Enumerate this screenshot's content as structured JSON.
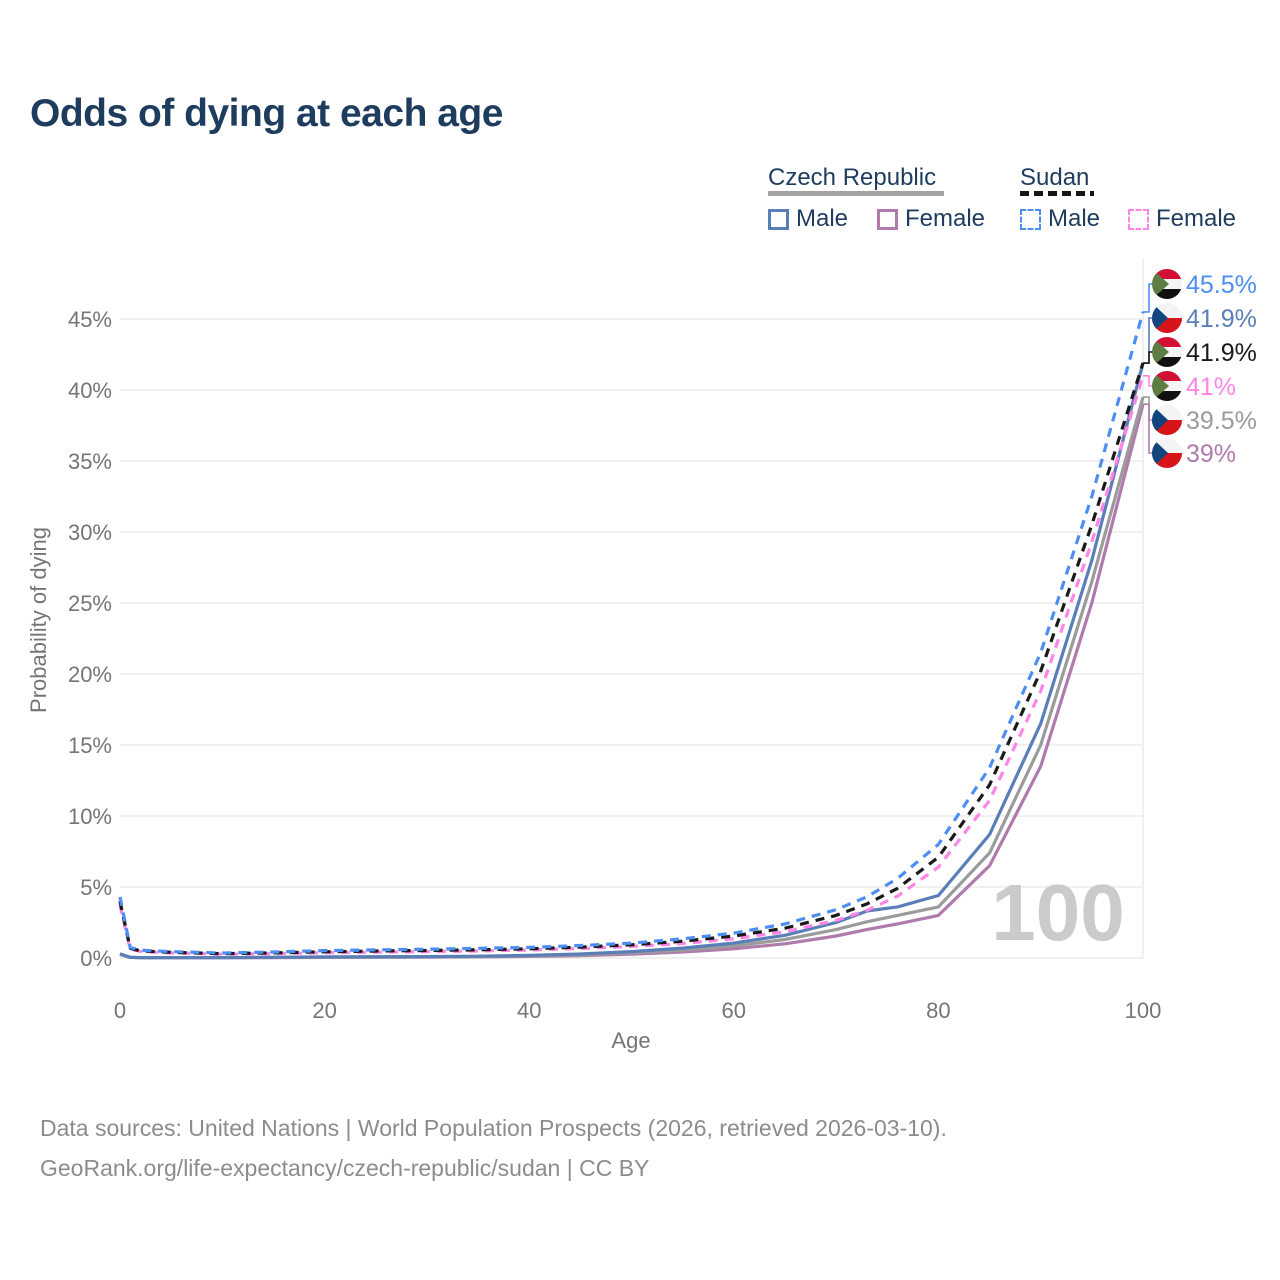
{
  "title": "Odds of dying at each age",
  "legend": {
    "groups": [
      {
        "name": "Czech Republic",
        "line_style": "solid",
        "underline_color": "#a3a3a3",
        "items": [
          {
            "label": "Male",
            "color": "#5a7eb8"
          },
          {
            "label": "Female",
            "color": "#b07aac"
          }
        ]
      },
      {
        "name": "Sudan",
        "line_style": "dashed",
        "underline_color": "#151515",
        "items": [
          {
            "label": "Male",
            "color": "#4d8ef5"
          },
          {
            "label": "Female",
            "color": "#ff85e6"
          }
        ]
      }
    ]
  },
  "watermark": "100",
  "footer": {
    "line1": "Data sources: United Nations | World Population Prospects (2026, retrieved 2026-03-10).",
    "line2": "GeoRank.org/life-expectancy/czech-republic/sudan | CC BY"
  },
  "chart_data": {
    "type": "line",
    "title": "Odds of dying at each age",
    "xlabel": "Age",
    "ylabel": "Probability of dying",
    "xlim": [
      0,
      100
    ],
    "ylim_pct": [
      0,
      47
    ],
    "grid": true,
    "legend_position": "top-right",
    "x_ticks": [
      0,
      20,
      40,
      60,
      80,
      100
    ],
    "y_tick_values_pct": [
      0,
      5,
      10,
      15,
      20,
      25,
      30,
      35,
      40,
      45
    ],
    "y_tick_suffix": "%",
    "ages": [
      0,
      1,
      2,
      5,
      10,
      15,
      20,
      25,
      30,
      35,
      40,
      45,
      50,
      55,
      60,
      65,
      70,
      73,
      76,
      80,
      85,
      90,
      95,
      100
    ],
    "series": [
      {
        "id": "czech-female",
        "name": "Czech Republic Female",
        "country": "Czech Republic",
        "sex": "Female",
        "color": "#b07aac",
        "dashed": false,
        "flag": "czech",
        "end_label": "39%",
        "values_pct": [
          0.25,
          0.04,
          0.02,
          0.02,
          0.02,
          0.03,
          0.04,
          0.05,
          0.06,
          0.08,
          0.11,
          0.17,
          0.27,
          0.42,
          0.65,
          1.0,
          1.55,
          2.0,
          2.4,
          3.0,
          6.5,
          13.5,
          25.0,
          39.0
        ]
      },
      {
        "id": "czech-all",
        "name": "Czech Republic",
        "country": "Czech Republic",
        "sex": "Both",
        "color": "#9b9b9b",
        "dashed": false,
        "flag": "czech",
        "end_label": "39.5%",
        "values_pct": [
          0.27,
          0.04,
          0.03,
          0.02,
          0.02,
          0.04,
          0.06,
          0.07,
          0.08,
          0.1,
          0.14,
          0.22,
          0.36,
          0.55,
          0.85,
          1.3,
          2.0,
          2.55,
          3.0,
          3.6,
          7.4,
          15.0,
          26.5,
          39.5
        ]
      },
      {
        "id": "czech-male",
        "name": "Czech Republic Male",
        "country": "Czech Republic",
        "sex": "Male",
        "color": "#5a7eb8",
        "dashed": false,
        "flag": "czech",
        "end_label": "41.9%",
        "values_pct": [
          0.3,
          0.05,
          0.03,
          0.02,
          0.02,
          0.05,
          0.08,
          0.09,
          0.1,
          0.13,
          0.18,
          0.28,
          0.45,
          0.7,
          1.05,
          1.6,
          2.5,
          3.3,
          3.6,
          4.4,
          8.7,
          16.5,
          28.0,
          41.9
        ]
      },
      {
        "id": "sudan-female",
        "name": "Sudan Female",
        "country": "Sudan",
        "sex": "Female",
        "color": "#ff85e6",
        "dashed": true,
        "flag": "sudan",
        "end_label": "41%",
        "values_pct": [
          3.7,
          0.62,
          0.46,
          0.36,
          0.27,
          0.3,
          0.37,
          0.41,
          0.45,
          0.49,
          0.56,
          0.67,
          0.82,
          1.02,
          1.35,
          1.85,
          2.65,
          3.35,
          4.35,
          6.4,
          11.1,
          18.8,
          29.3,
          41.0
        ]
      },
      {
        "id": "sudan-all",
        "name": "Sudan",
        "country": "Sudan",
        "sex": "Both",
        "color": "#1a1a1a",
        "dashed": true,
        "flag": "sudan",
        "end_label": "41.9%",
        "values_pct": [
          4.0,
          0.68,
          0.5,
          0.4,
          0.3,
          0.36,
          0.44,
          0.49,
          0.53,
          0.58,
          0.65,
          0.77,
          0.93,
          1.18,
          1.55,
          2.1,
          3.0,
          3.8,
          4.9,
          7.1,
          12.2,
          20.2,
          30.5,
          41.9
        ]
      },
      {
        "id": "sudan-male",
        "name": "Sudan Male",
        "country": "Sudan",
        "sex": "Male",
        "color": "#4d8ef5",
        "dashed": true,
        "flag": "sudan",
        "end_label": "45.5%",
        "values_pct": [
          4.3,
          0.75,
          0.55,
          0.45,
          0.35,
          0.42,
          0.52,
          0.57,
          0.62,
          0.68,
          0.75,
          0.88,
          1.05,
          1.35,
          1.75,
          2.4,
          3.4,
          4.3,
          5.6,
          8.0,
          13.4,
          21.5,
          32.5,
          45.5
        ]
      }
    ]
  }
}
